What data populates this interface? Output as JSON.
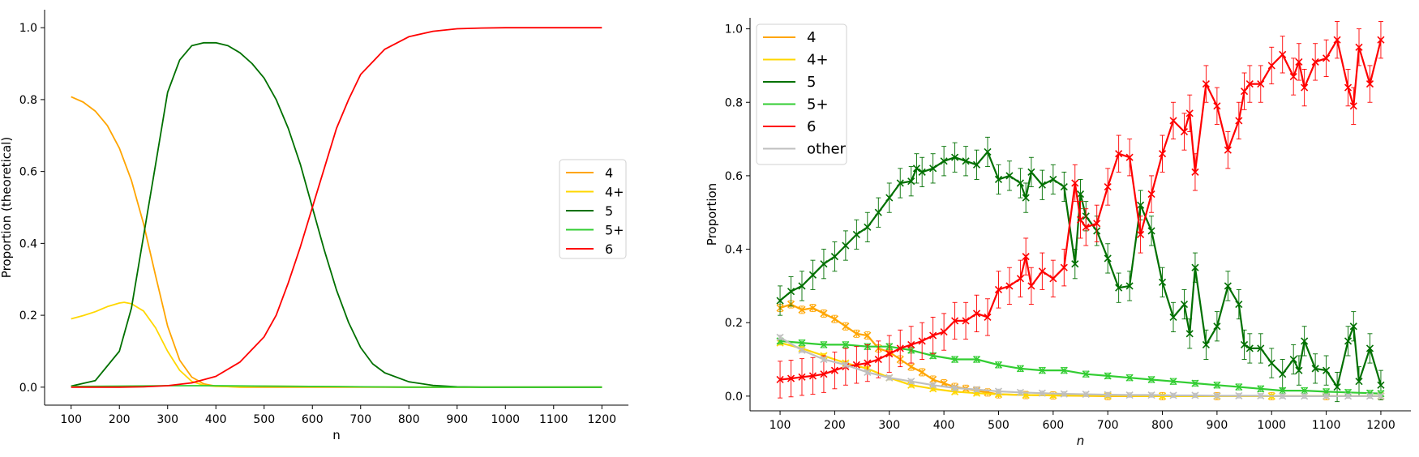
{
  "chart_data": [
    {
      "type": "line",
      "xlabel": "n",
      "ylabel": "Proportion (theoretical)",
      "xlim": [
        45,
        1255
      ],
      "ylim": [
        -0.05,
        1.05
      ],
      "xticks": [
        100,
        200,
        300,
        400,
        500,
        600,
        700,
        800,
        900,
        1000,
        1100,
        1200
      ],
      "yticks": [
        0.0,
        0.2,
        0.4,
        0.6,
        0.8,
        1.0
      ],
      "legend": "center-right",
      "grid": false,
      "series": [
        {
          "name": "4",
          "color": "#ffa500",
          "x": [
            100,
            125,
            150,
            175,
            200,
            225,
            250,
            275,
            300,
            325,
            350,
            375,
            400,
            450,
            500,
            600,
            800,
            1200
          ],
          "y": [
            0.808,
            0.793,
            0.768,
            0.728,
            0.665,
            0.575,
            0.455,
            0.31,
            0.17,
            0.075,
            0.028,
            0.009,
            0.003,
            0.0,
            0.0,
            0.0,
            0.0,
            0.0
          ]
        },
        {
          "name": "4+",
          "color": "#ffd700",
          "x": [
            100,
            125,
            150,
            175,
            200,
            210,
            225,
            250,
            275,
            300,
            325,
            350,
            375,
            400,
            450,
            500,
            600,
            800,
            1200
          ],
          "y": [
            0.19,
            0.199,
            0.21,
            0.224,
            0.234,
            0.236,
            0.232,
            0.212,
            0.165,
            0.1,
            0.047,
            0.016,
            0.005,
            0.002,
            0.001,
            0.003,
            0.002,
            0.0,
            0.0
          ]
        },
        {
          "name": "5",
          "color": "#007000",
          "x": [
            100,
            150,
            200,
            225,
            250,
            275,
            300,
            325,
            350,
            375,
            400,
            425,
            450,
            475,
            500,
            525,
            550,
            575,
            600,
            625,
            650,
            675,
            700,
            725,
            750,
            800,
            850,
            900,
            950,
            1000,
            1200
          ],
          "y": [
            0.003,
            0.018,
            0.1,
            0.22,
            0.42,
            0.62,
            0.82,
            0.91,
            0.95,
            0.958,
            0.958,
            0.95,
            0.93,
            0.9,
            0.86,
            0.8,
            0.72,
            0.62,
            0.5,
            0.38,
            0.27,
            0.18,
            0.11,
            0.065,
            0.04,
            0.015,
            0.005,
            0.001,
            0.0,
            0.0,
            0.0
          ]
        },
        {
          "name": "5+",
          "color": "#32cd32",
          "x": [
            100,
            200,
            300,
            400,
            500,
            600,
            700,
            800,
            1200
          ],
          "y": [
            0.002,
            0.003,
            0.004,
            0.004,
            0.003,
            0.002,
            0.001,
            0.0,
            0.0
          ]
        },
        {
          "name": "6",
          "color": "#ff0000",
          "x": [
            100,
            200,
            250,
            300,
            350,
            400,
            450,
            500,
            525,
            550,
            575,
            600,
            625,
            650,
            675,
            700,
            750,
            800,
            850,
            900,
            950,
            1000,
            1100,
            1200
          ],
          "y": [
            0.0,
            0.0,
            0.001,
            0.004,
            0.012,
            0.03,
            0.07,
            0.14,
            0.2,
            0.29,
            0.39,
            0.5,
            0.61,
            0.72,
            0.8,
            0.87,
            0.94,
            0.975,
            0.99,
            0.997,
            0.999,
            1.0,
            1.0,
            1.0
          ]
        }
      ]
    },
    {
      "type": "line",
      "xlabel": "n",
      "ylabel": "Proportion",
      "xlim": [
        45,
        1255
      ],
      "ylim": [
        -0.04,
        1.03
      ],
      "xticks": [
        100,
        200,
        300,
        400,
        500,
        600,
        700,
        800,
        900,
        1000,
        1100,
        1200
      ],
      "yticks": [
        0.0,
        0.2,
        0.4,
        0.6,
        0.8,
        1.0
      ],
      "legend": "top-left",
      "grid": false,
      "markers": "x with error bars",
      "series": [
        {
          "name": "4",
          "color": "#ffa500",
          "x": [
            100,
            120,
            140,
            160,
            180,
            200,
            220,
            240,
            260,
            280,
            300,
            320,
            340,
            360,
            380,
            400,
            420,
            440,
            460,
            480,
            500,
            550,
            600,
            700,
            800,
            900,
            1000,
            1100,
            1200
          ],
          "y": [
            0.24,
            0.25,
            0.235,
            0.24,
            0.225,
            0.21,
            0.19,
            0.17,
            0.165,
            0.13,
            0.12,
            0.1,
            0.08,
            0.065,
            0.045,
            0.035,
            0.025,
            0.02,
            0.015,
            0.01,
            0.005,
            0.003,
            0.002,
            0.0,
            0.0,
            0.0,
            0.0,
            0.0,
            0.0
          ],
          "err": 0.01
        },
        {
          "name": "4+",
          "color": "#ffd700",
          "x": [
            100,
            140,
            180,
            220,
            260,
            300,
            340,
            380,
            420,
            460,
            500,
            550,
            600,
            700,
            800,
            900,
            1000,
            1100,
            1200
          ],
          "y": [
            0.145,
            0.13,
            0.11,
            0.09,
            0.075,
            0.05,
            0.03,
            0.02,
            0.012,
            0.008,
            0.005,
            0.003,
            0.002,
            0.001,
            0.0,
            0.0,
            0.0,
            0.0,
            0.0
          ],
          "err": 0.006
        },
        {
          "name": "5",
          "color": "#007000",
          "x": [
            100,
            120,
            140,
            160,
            180,
            200,
            220,
            240,
            260,
            280,
            300,
            320,
            340,
            350,
            360,
            380,
            400,
            420,
            440,
            460,
            480,
            500,
            520,
            540,
            550,
            560,
            580,
            600,
            620,
            640,
            650,
            660,
            680,
            700,
            720,
            740,
            760,
            780,
            800,
            820,
            840,
            850,
            860,
            880,
            900,
            920,
            940,
            950,
            960,
            980,
            1000,
            1020,
            1040,
            1050,
            1060,
            1080,
            1100,
            1120,
            1140,
            1150,
            1160,
            1180,
            1200
          ],
          "y": [
            0.26,
            0.285,
            0.3,
            0.33,
            0.36,
            0.38,
            0.41,
            0.44,
            0.46,
            0.5,
            0.54,
            0.58,
            0.585,
            0.62,
            0.61,
            0.62,
            0.64,
            0.65,
            0.64,
            0.63,
            0.665,
            0.59,
            0.6,
            0.58,
            0.54,
            0.61,
            0.575,
            0.59,
            0.57,
            0.36,
            0.55,
            0.49,
            0.45,
            0.375,
            0.295,
            0.3,
            0.52,
            0.45,
            0.31,
            0.215,
            0.25,
            0.17,
            0.35,
            0.14,
            0.19,
            0.3,
            0.25,
            0.14,
            0.13,
            0.13,
            0.09,
            0.06,
            0.1,
            0.07,
            0.15,
            0.075,
            0.07,
            0.025,
            0.15,
            0.19,
            0.04,
            0.13,
            0.03
          ],
          "err": 0.04
        },
        {
          "name": "5+",
          "color": "#32cd32",
          "x": [
            100,
            140,
            180,
            220,
            260,
            300,
            340,
            380,
            420,
            460,
            500,
            540,
            580,
            620,
            660,
            700,
            740,
            780,
            820,
            860,
            900,
            940,
            980,
            1020,
            1060,
            1100,
            1140,
            1180,
            1200
          ],
          "y": [
            0.15,
            0.145,
            0.14,
            0.14,
            0.135,
            0.135,
            0.125,
            0.11,
            0.1,
            0.1,
            0.085,
            0.075,
            0.07,
            0.07,
            0.06,
            0.055,
            0.05,
            0.045,
            0.04,
            0.035,
            0.03,
            0.025,
            0.02,
            0.015,
            0.015,
            0.012,
            0.01,
            0.008,
            0.007
          ],
          "err": 0.008
        },
        {
          "name": "6",
          "color": "#ff0000",
          "x": [
            100,
            120,
            140,
            160,
            180,
            200,
            220,
            240,
            260,
            280,
            300,
            320,
            340,
            360,
            380,
            400,
            420,
            440,
            460,
            480,
            500,
            520,
            540,
            550,
            560,
            580,
            600,
            620,
            640,
            650,
            660,
            680,
            700,
            720,
            740,
            760,
            780,
            800,
            820,
            840,
            850,
            860,
            880,
            900,
            920,
            940,
            950,
            960,
            980,
            1000,
            1020,
            1040,
            1050,
            1060,
            1080,
            1100,
            1120,
            1140,
            1150,
            1160,
            1180,
            1200
          ],
          "y": [
            0.045,
            0.048,
            0.052,
            0.055,
            0.06,
            0.07,
            0.08,
            0.085,
            0.09,
            0.1,
            0.115,
            0.13,
            0.14,
            0.15,
            0.165,
            0.175,
            0.205,
            0.205,
            0.225,
            0.215,
            0.29,
            0.3,
            0.32,
            0.38,
            0.3,
            0.34,
            0.32,
            0.35,
            0.58,
            0.48,
            0.46,
            0.47,
            0.57,
            0.66,
            0.65,
            0.44,
            0.55,
            0.66,
            0.75,
            0.72,
            0.77,
            0.61,
            0.85,
            0.79,
            0.67,
            0.75,
            0.83,
            0.85,
            0.85,
            0.9,
            0.93,
            0.87,
            0.91,
            0.84,
            0.91,
            0.92,
            0.97,
            0.84,
            0.79,
            0.95,
            0.85,
            0.97
          ],
          "err": 0.05
        },
        {
          "name": "other",
          "color": "#bfbfbf",
          "x": [
            100,
            140,
            180,
            220,
            260,
            300,
            340,
            380,
            420,
            460,
            500,
            540,
            580,
            620,
            660,
            700,
            740,
            780,
            820,
            860,
            900,
            940,
            980,
            1020,
            1060,
            1100,
            1140,
            1180,
            1200
          ],
          "y": [
            0.16,
            0.125,
            0.1,
            0.085,
            0.065,
            0.05,
            0.04,
            0.03,
            0.022,
            0.018,
            0.013,
            0.01,
            0.008,
            0.006,
            0.005,
            0.004,
            0.003,
            0.003,
            0.002,
            0.002,
            0.001,
            0.001,
            0.001,
            0.0,
            0.0,
            0.0,
            0.0,
            0.0,
            0.0
          ],
          "err": 0.006
        }
      ]
    }
  ]
}
